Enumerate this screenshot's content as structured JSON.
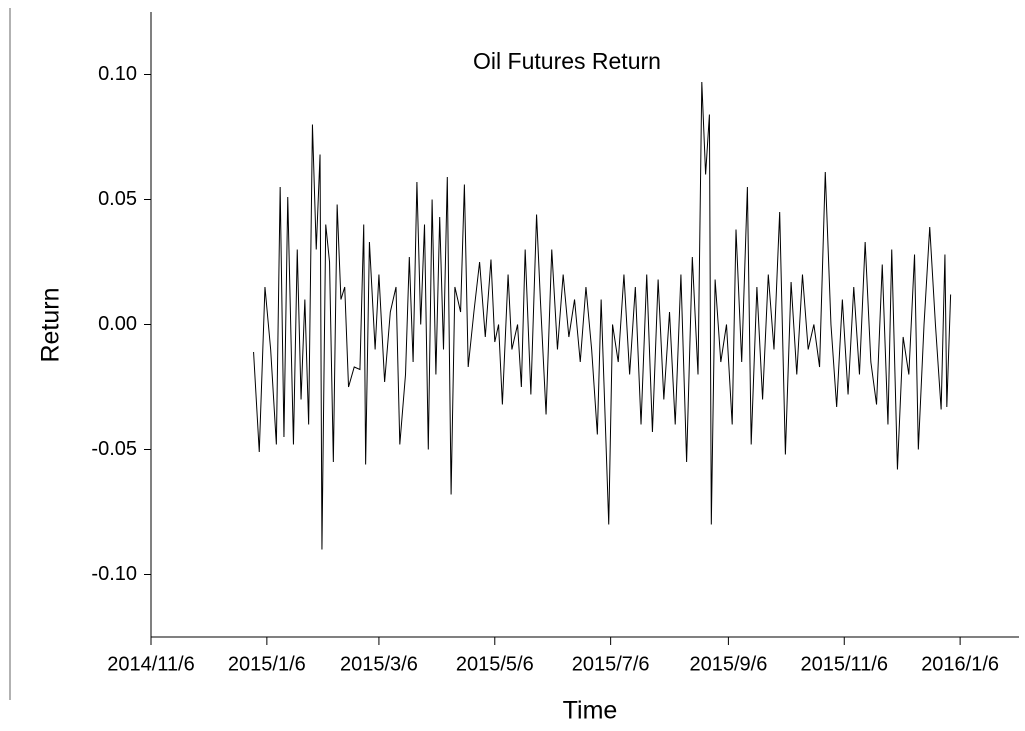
{
  "chart_data": {
    "type": "line",
    "title": "Oil Futures Return",
    "x_label": "Time",
    "y_label": "Return",
    "color": "#000000",
    "xlim": [
      "2014/11/6",
      "2016/2/6"
    ],
    "xticks": [
      "2014/11/6",
      "2015/1/6",
      "2015/3/6",
      "2015/5/6",
      "2015/7/6",
      "2015/9/6",
      "2015/11/6",
      "2016/1/6"
    ],
    "ylim": [
      -0.125,
      0.125
    ],
    "yticks": [
      {
        "value": 0.1,
        "label": "0.10"
      },
      {
        "value": 0.05,
        "label": "0.05"
      },
      {
        "value": 0,
        "label": "0.00"
      },
      {
        "value": -0.05,
        "label": "-0.05"
      },
      {
        "value": -0.1,
        "label": "-0.10"
      }
    ],
    "x": [
      "2014-12-30",
      "2015-01-02",
      "2015-01-05",
      "2015-01-08",
      "2015-01-11",
      "2015-01-13",
      "2015-01-15",
      "2015-01-17",
      "2015-01-20",
      "2015-01-22",
      "2015-01-24",
      "2015-01-26",
      "2015-01-28",
      "2015-01-30",
      "2015-02-01",
      "2015-02-03",
      "2015-02-04",
      "2015-02-06",
      "2015-02-08",
      "2015-02-10",
      "2015-02-12",
      "2015-02-14",
      "2015-02-16",
      "2015-02-18",
      "2015-02-21",
      "2015-02-24",
      "2015-02-26",
      "2015-02-27",
      "2015-03-01",
      "2015-03-04",
      "2015-03-06",
      "2015-03-09",
      "2015-03-12",
      "2015-03-15",
      "2015-03-17",
      "2015-03-20",
      "2015-03-22",
      "2015-03-24",
      "2015-03-26",
      "2015-03-28",
      "2015-03-30",
      "2015-04-01",
      "2015-04-03",
      "2015-04-05",
      "2015-04-07",
      "2015-04-09",
      "2015-04-11",
      "2015-04-13",
      "2015-04-15",
      "2015-04-18",
      "2015-04-20",
      "2015-04-22",
      "2015-04-25",
      "2015-04-28",
      "2015-05-01",
      "2015-05-04",
      "2015-05-06",
      "2015-05-08",
      "2015-05-10",
      "2015-05-13",
      "2015-05-15",
      "2015-05-18",
      "2015-05-20",
      "2015-05-22",
      "2015-05-25",
      "2015-05-28",
      "2015-05-30",
      "2015-06-02",
      "2015-06-05",
      "2015-06-08",
      "2015-06-11",
      "2015-06-14",
      "2015-06-17",
      "2015-06-20",
      "2015-06-23",
      "2015-06-26",
      "2015-06-29",
      "2015-07-01",
      "2015-07-03",
      "2015-07-05",
      "2015-07-07",
      "2015-07-10",
      "2015-07-13",
      "2015-07-16",
      "2015-07-19",
      "2015-07-22",
      "2015-07-25",
      "2015-07-28",
      "2015-07-31",
      "2015-08-03",
      "2015-08-06",
      "2015-08-09",
      "2015-08-12",
      "2015-08-15",
      "2015-08-18",
      "2015-08-21",
      "2015-08-23",
      "2015-08-25",
      "2015-08-27",
      "2015-08-28",
      "2015-08-30",
      "2015-09-02",
      "2015-09-05",
      "2015-09-08",
      "2015-09-10",
      "2015-09-13",
      "2015-09-16",
      "2015-09-18",
      "2015-09-21",
      "2015-09-24",
      "2015-09-27",
      "2015-09-30",
      "2015-10-03",
      "2015-10-06",
      "2015-10-09",
      "2015-10-12",
      "2015-10-15",
      "2015-10-18",
      "2015-10-21",
      "2015-10-24",
      "2015-10-27",
      "2015-10-30",
      "2015-11-02",
      "2015-11-05",
      "2015-11-08",
      "2015-11-11",
      "2015-11-14",
      "2015-11-17",
      "2015-11-20",
      "2015-11-23",
      "2015-11-26",
      "2015-11-29",
      "2015-12-01",
      "2015-12-04",
      "2015-12-07",
      "2015-12-10",
      "2015-12-13",
      "2015-12-15",
      "2015-12-18",
      "2015-12-21",
      "2015-12-24",
      "2015-12-27",
      "2015-12-29",
      "2015-12-30",
      "2016-01-01"
    ],
    "values": [
      -0.011,
      -0.051,
      0.015,
      -0.01,
      -0.048,
      0.055,
      -0.045,
      0.051,
      -0.048,
      0.03,
      -0.03,
      0.01,
      -0.04,
      0.08,
      0.03,
      0.068,
      -0.09,
      0.04,
      0.025,
      -0.055,
      0.048,
      0.01,
      0.015,
      -0.025,
      -0.017,
      -0.018,
      0.04,
      -0.056,
      0.033,
      -0.01,
      0.02,
      -0.023,
      0.005,
      0.015,
      -0.048,
      -0.02,
      0.027,
      -0.015,
      0.057,
      0.0,
      0.04,
      -0.05,
      0.05,
      -0.02,
      0.043,
      -0.01,
      0.059,
      -0.068,
      0.015,
      0.005,
      0.056,
      -0.017,
      0.005,
      0.025,
      -0.005,
      0.026,
      -0.007,
      0.0,
      -0.032,
      0.02,
      -0.01,
      0.0,
      -0.025,
      0.03,
      -0.028,
      0.044,
      0.01,
      -0.036,
      0.03,
      -0.01,
      0.02,
      -0.005,
      0.01,
      -0.015,
      0.015,
      -0.01,
      -0.044,
      0.01,
      -0.035,
      -0.08,
      0.0,
      -0.015,
      0.02,
      -0.02,
      0.015,
      -0.04,
      0.02,
      -0.043,
      0.018,
      -0.03,
      0.005,
      -0.04,
      0.02,
      -0.055,
      0.027,
      -0.02,
      0.097,
      0.06,
      0.084,
      -0.08,
      0.018,
      -0.015,
      0.0,
      -0.04,
      0.038,
      -0.015,
      0.055,
      -0.048,
      0.015,
      -0.03,
      0.02,
      -0.01,
      0.045,
      -0.052,
      0.017,
      -0.02,
      0.02,
      -0.01,
      0.0,
      -0.017,
      0.061,
      0.0,
      -0.033,
      0.01,
      -0.028,
      0.015,
      -0.02,
      0.033,
      -0.015,
      -0.032,
      0.024,
      -0.04,
      0.03,
      -0.058,
      -0.005,
      -0.02,
      0.028,
      -0.05,
      0.0,
      0.039,
      0.0,
      -0.034,
      0.028,
      -0.033,
      0.012
    ]
  }
}
